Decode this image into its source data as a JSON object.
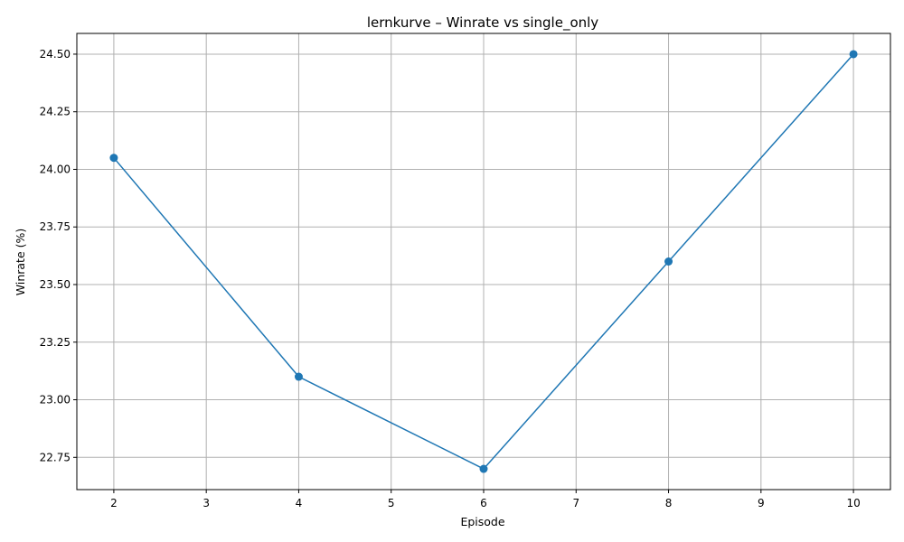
{
  "chart_data": {
    "type": "line",
    "title": "lernkurve – Winrate vs single_only",
    "xlabel": "Episode",
    "ylabel": "Winrate (%)",
    "x": [
      2,
      4,
      6,
      8,
      10
    ],
    "series": [
      {
        "values": [
          24.05,
          23.1,
          22.7,
          23.6,
          24.5
        ],
        "color": "#1f77b4",
        "marker": "circle"
      }
    ],
    "xlim": [
      1.6,
      10.4
    ],
    "ylim": [
      22.61,
      24.59
    ],
    "xticks": [
      2,
      3,
      4,
      5,
      6,
      7,
      8,
      9,
      10
    ],
    "yticks": [
      22.75,
      23.0,
      23.25,
      23.5,
      23.75,
      24.0,
      24.25,
      24.5
    ],
    "xtick_labels": [
      "2",
      "3",
      "4",
      "5",
      "6",
      "7",
      "8",
      "9",
      "10"
    ],
    "ytick_labels": [
      "22.75",
      "23.00",
      "23.25",
      "23.50",
      "23.75",
      "24.00",
      "24.25",
      "24.50"
    ],
    "grid": true,
    "legend": "none"
  }
}
